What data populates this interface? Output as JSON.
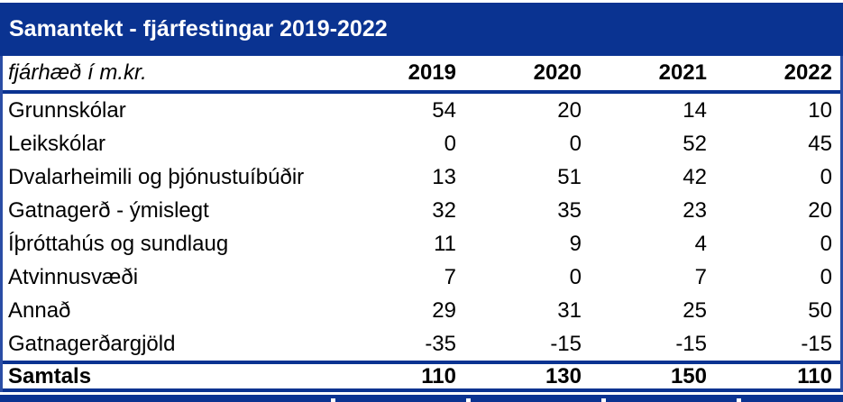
{
  "table": {
    "title": "Samantekt - fjárfestingar 2019-2022",
    "unit_label": "fjárhæð í m.kr.",
    "years": [
      "2019",
      "2020",
      "2021",
      "2022"
    ],
    "rows": [
      {
        "label": "Grunnskólar",
        "values": [
          "54",
          "20",
          "14",
          "10"
        ]
      },
      {
        "label": "Leikskólar",
        "values": [
          "0",
          "0",
          "52",
          "45"
        ]
      },
      {
        "label": "Dvalarheimili og þjónustuíbúðir",
        "values": [
          "13",
          "51",
          "42",
          "0"
        ]
      },
      {
        "label": "Gatnagerð - ýmislegt",
        "values": [
          "32",
          "35",
          "23",
          "20"
        ]
      },
      {
        "label": "Íþróttahús og sundlaug",
        "values": [
          "11",
          "9",
          "4",
          "0"
        ]
      },
      {
        "label": "Atvinnusvæði",
        "values": [
          "7",
          "0",
          "7",
          "0"
        ]
      },
      {
        "label": "Annað",
        "values": [
          "29",
          "31",
          "25",
          "50"
        ]
      },
      {
        "label": "Gatnagerðargjöld",
        "values": [
          "-35",
          "-15",
          "-15",
          "-15"
        ]
      }
    ],
    "total": {
      "label": "Samtals",
      "values": [
        "110",
        "130",
        "150",
        "110"
      ]
    },
    "colors": {
      "title_bar_bg": "#0A3391",
      "border_blue": "#0A3391",
      "title_text": "#FFFFFF",
      "body_text": "#000000"
    }
  }
}
